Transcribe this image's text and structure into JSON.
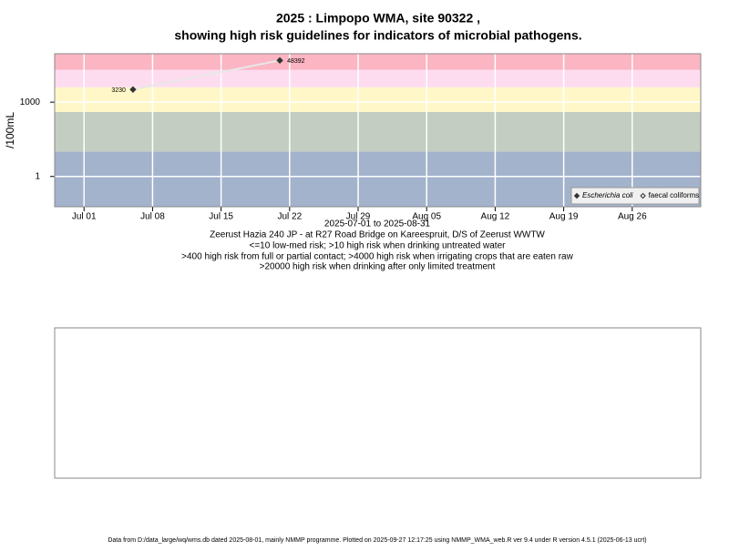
{
  "chart_data": {
    "type": "scatter",
    "title": [
      "2025 : Limpopo WMA, site 90322 ,",
      "showing high risk guidelines for indicators of microbial pathogens."
    ],
    "ylabel": "/100mL",
    "xlabel": "2025-07-01 to 2025-08-31",
    "notes": [
      "Zeerust Hazia 240 JP - at R27 Road Bridge on Kareespruit, D/S of Zeerust WWTW",
      "<=10 low-med risk; >10 high risk when drinking untreated water",
      ">400 high risk from full or partial contact; >4000 high risk when irrigating crops that are eaten raw",
      ">20000 high risk when drinking after only limited treatment"
    ],
    "footer": "Data from D:/data_large/wq/wms.db dated 2025-08-01, mainly NMMP programme. Plotted on 2025-09-27 12:17:25 using NMMP_WMA_web.R ver 9.4 under R version 4.5.1 (2025-06-13 ucrt)",
    "x": [
      "2025-07-06",
      "2025-07-21"
    ],
    "series": [
      {
        "name": "Escherichia coli",
        "color": "#333333",
        "values": [
          3230,
          48392
        ]
      },
      {
        "name": "faecal coliforms",
        "color": "#333333",
        "values": [
          null,
          null
        ]
      }
    ],
    "xlim": [
      "2025-06-28",
      "2025-09-02"
    ],
    "xticks": [
      {
        "value": "2025-07-01",
        "label": "Jul 01"
      },
      {
        "value": "2025-07-08",
        "label": "Jul 08"
      },
      {
        "value": "2025-07-15",
        "label": "Jul 15"
      },
      {
        "value": "2025-07-22",
        "label": "Jul 22"
      },
      {
        "value": "2025-07-29",
        "label": "Jul 29"
      },
      {
        "value": "2025-08-05",
        "label": "Aug 05"
      },
      {
        "value": "2025-08-12",
        "label": "Aug 12"
      },
      {
        "value": "2025-08-19",
        "label": "Aug 19"
      },
      {
        "value": "2025-08-26",
        "label": "Aug 26"
      }
    ],
    "ylim": [
      0.06,
      90000
    ],
    "yticks": [
      1,
      1000
    ],
    "log_y": true,
    "grid": true,
    "risk_thresholds": [
      10,
      400,
      4000,
      20000
    ],
    "band_colors": [
      "#a3b3cb",
      "#c3cdc2",
      "#fff7c8",
      "#fddcf0",
      "#fbb5c3"
    ],
    "legend": "bottom-right"
  }
}
